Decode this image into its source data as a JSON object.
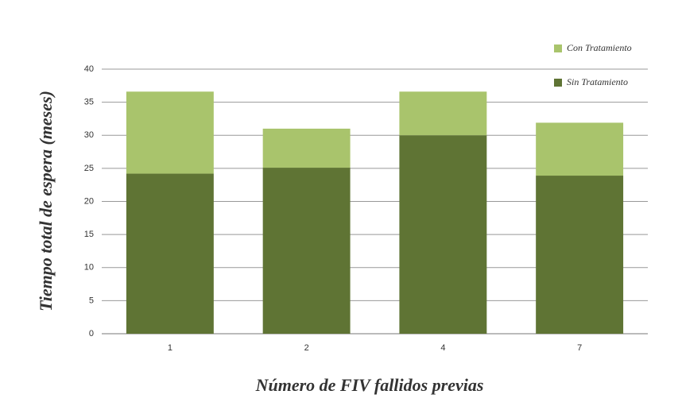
{
  "chart_data": {
    "type": "stacked_bar",
    "x_label": "Número de FIV fallidos previas",
    "y_label": "Tiempo total de espera (meses)",
    "categories": [
      "1",
      "2",
      "4",
      "7"
    ],
    "series": [
      {
        "name": "Sin Tratamiento",
        "color": "#5f7434",
        "values": [
          24.2,
          25.1,
          30,
          23.9
        ]
      },
      {
        "name": "Con Tratamiento",
        "color": "#a9c46c",
        "values": [
          12.4,
          5.9,
          6.6,
          8.0
        ]
      }
    ],
    "ylim": [
      0,
      40
    ],
    "yticks": [
      0,
      5,
      10,
      15,
      20,
      25,
      30,
      35,
      40
    ],
    "grid": true,
    "legend": "top-right"
  }
}
